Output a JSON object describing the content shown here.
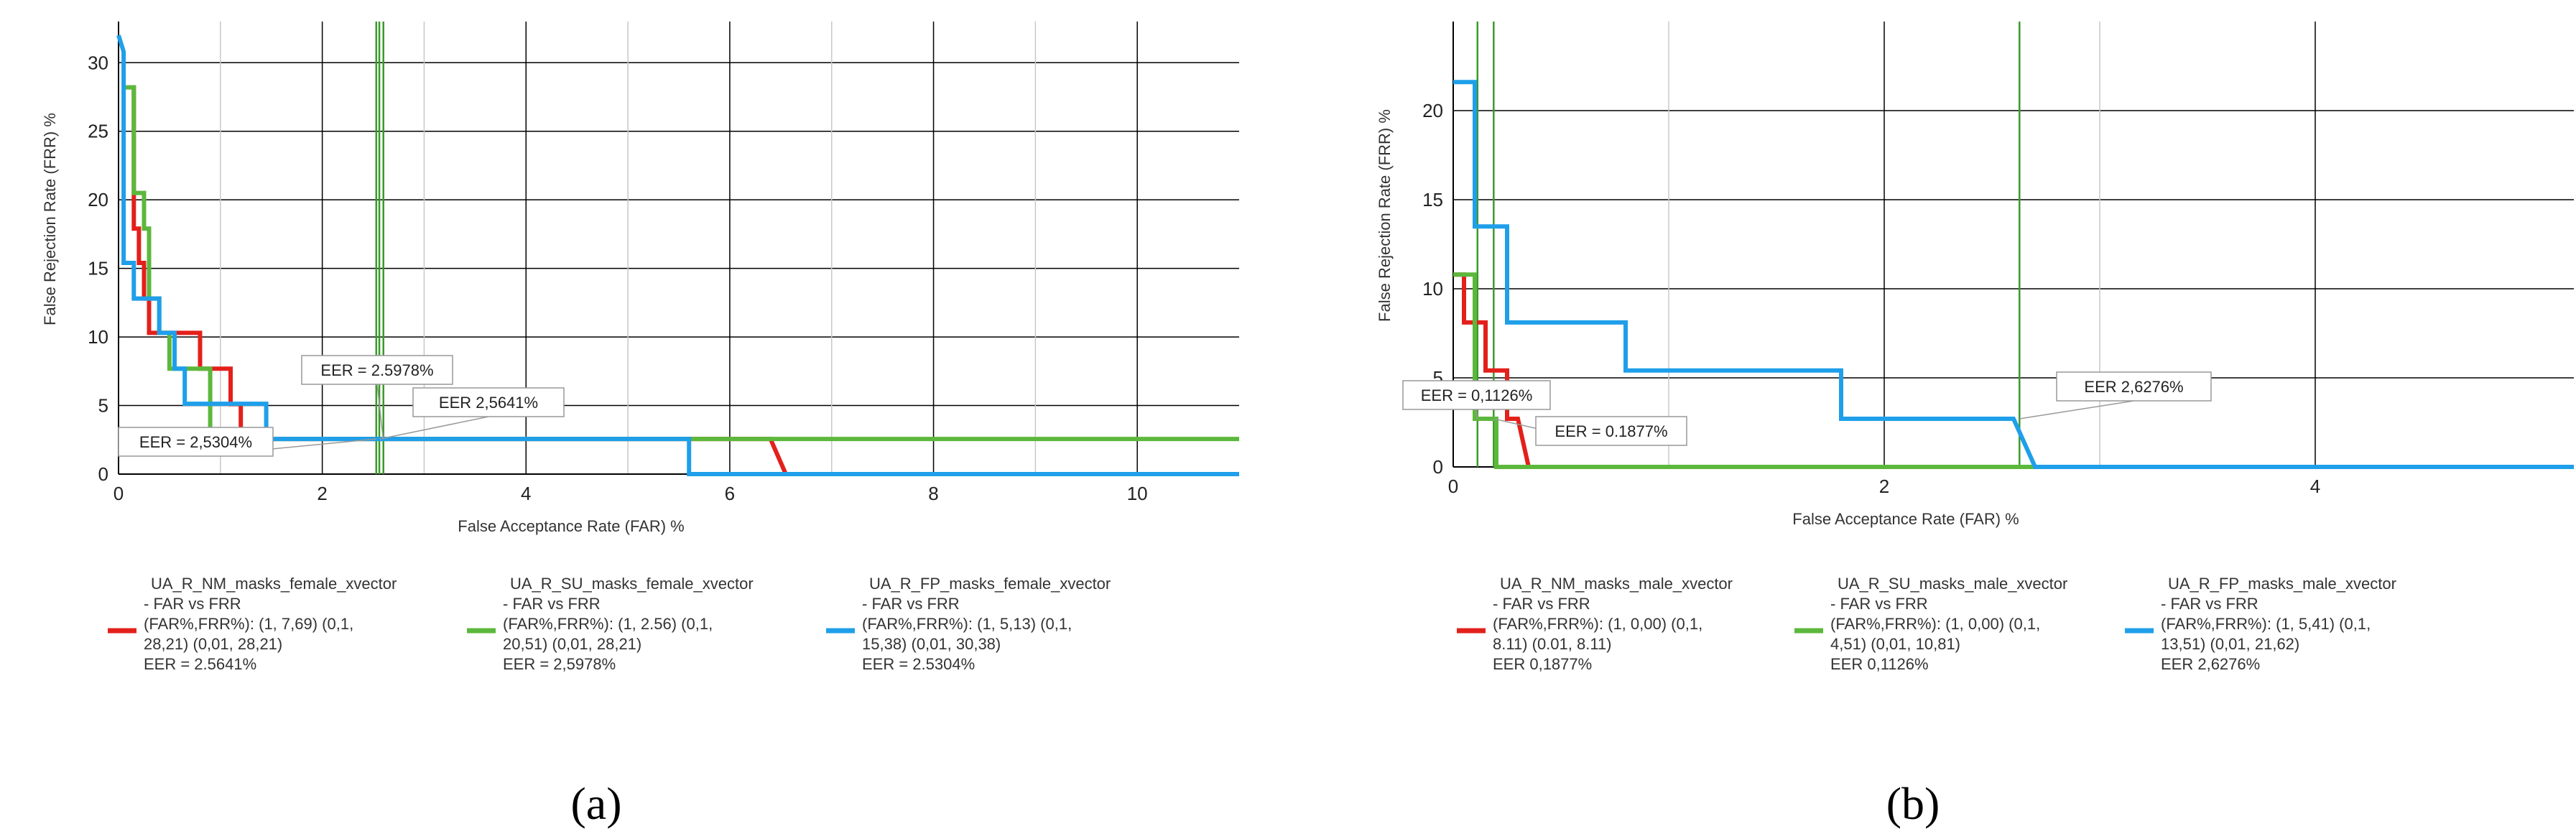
{
  "chart_data": [
    {
      "type": "line",
      "panel": "a",
      "caption": "(a)",
      "xlabel": "False Acceptance Rate (FAR) %",
      "ylabel": "False Rejection Rate (FRR) %",
      "xlim": [
        0,
        11
      ],
      "ylim": [
        0,
        33
      ],
      "x_ticks": [
        0,
        2,
        4,
        6,
        8,
        10
      ],
      "y_ticks": [
        0,
        5,
        10,
        15,
        20,
        25,
        30
      ],
      "grid": true,
      "legend_position": "bottom",
      "series": [
        {
          "name": "UA_R_NM_masks_female_xvector",
          "legend_lines": [
            "UA_R_NM_masks_female_xvector",
            "- FAR vs FRR",
            "(FAR%,FRR%): (1, 7,69) (0,1,",
            "28,21) (0,01, 28,21)",
            "EER = 2.5641%"
          ],
          "color": "#e3201b",
          "points": [
            [
              0.1,
              28.2
            ],
            [
              0.1,
              28.2
            ],
            [
              0.15,
              28.2
            ],
            [
              0.15,
              17.9
            ],
            [
              0.2,
              17.9
            ],
            [
              0.2,
              15.4
            ],
            [
              0.25,
              15.4
            ],
            [
              0.25,
              12.8
            ],
            [
              0.3,
              12.8
            ],
            [
              0.3,
              10.3
            ],
            [
              0.8,
              10.3
            ],
            [
              0.8,
              7.69
            ],
            [
              1.1,
              7.69
            ],
            [
              1.1,
              5.1
            ],
            [
              1.2,
              5.1
            ],
            [
              1.2,
              2.56
            ],
            [
              6.4,
              2.56
            ],
            [
              6.55,
              0
            ],
            [
              11,
              0
            ]
          ]
        },
        {
          "name": "UA_R_SU_masks_female_xvector",
          "legend_lines": [
            "UA_R_SU_masks_female_xvector",
            "- FAR vs FRR",
            "(FAR%,FRR%): (1, 2.56) (0,1,",
            "20,51) (0,01, 28,21)",
            "EER = 2,5978%"
          ],
          "color": "#5cb83c",
          "points": [
            [
              0.05,
              28.2
            ],
            [
              0.15,
              28.2
            ],
            [
              0.15,
              20.5
            ],
            [
              0.25,
              20.5
            ],
            [
              0.25,
              17.9
            ],
            [
              0.3,
              17.9
            ],
            [
              0.3,
              12.8
            ],
            [
              0.4,
              12.8
            ],
            [
              0.4,
              10.3
            ],
            [
              0.5,
              10.3
            ],
            [
              0.5,
              7.69
            ],
            [
              0.9,
              7.69
            ],
            [
              0.9,
              2.56
            ],
            [
              11,
              2.56
            ]
          ]
        },
        {
          "name": "UA_R_FP_masks_female_xvector",
          "legend_lines": [
            "UA_R_FP_masks_female_xvector",
            "- FAR vs FRR",
            "(FAR%,FRR%): (1, 5,13) (0,1,",
            "15,38) (0,01, 30,38)",
            "EER = 2.5304%"
          ],
          "color": "#1f9fea",
          "points": [
            [
              0,
              32
            ],
            [
              0.05,
              30.8
            ],
            [
              0.05,
              15.4
            ],
            [
              0.15,
              15.4
            ],
            [
              0.15,
              12.8
            ],
            [
              0.4,
              12.8
            ],
            [
              0.4,
              10.3
            ],
            [
              0.55,
              10.3
            ],
            [
              0.55,
              7.69
            ],
            [
              0.65,
              7.69
            ],
            [
              0.65,
              5.13
            ],
            [
              1.45,
              5.13
            ],
            [
              1.45,
              2.56
            ],
            [
              5.6,
              2.56
            ],
            [
              5.6,
              0
            ],
            [
              11,
              0
            ]
          ]
        }
      ],
      "vertical_lines": [
        2.53,
        2.56,
        2.6
      ],
      "annotations": [
        {
          "text": "EER = 2.5978%",
          "x": 2.5978,
          "y": 2.56
        },
        {
          "text": "EER   2,5641%",
          "x": 2.5641,
          "y": 2.56
        },
        {
          "text": "EER = 2,5304%",
          "x": 2.5304,
          "y": 2.56
        }
      ]
    },
    {
      "type": "line",
      "panel": "b",
      "caption": "(b)",
      "xlabel": "False Acceptance Rate (FAR) %",
      "ylabel": "False Rejection Rate (FRR) %",
      "xlim": [
        0,
        5.2
      ],
      "ylim": [
        0,
        25
      ],
      "x_ticks": [
        0,
        2,
        4
      ],
      "y_ticks": [
        0,
        5,
        10,
        15,
        20
      ],
      "grid": true,
      "legend_position": "bottom",
      "series": [
        {
          "name": "UA_R_NM_masks_male_xvector",
          "legend_lines": [
            "UA_R_NM_masks_male_xvector",
            "- FAR vs FRR",
            "(FAR%,FRR%): (1, 0,00) (0,1,",
            "8.11) (0.01, 8.11)",
            "EER   0,1877%"
          ],
          "color": "#e3201b",
          "points": [
            [
              0,
              10.8
            ],
            [
              0.05,
              10.8
            ],
            [
              0.05,
              8.11
            ],
            [
              0.15,
              8.11
            ],
            [
              0.15,
              5.41
            ],
            [
              0.25,
              5.41
            ],
            [
              0.25,
              2.7
            ],
            [
              0.3,
              2.7
            ],
            [
              0.35,
              0
            ],
            [
              5.2,
              0
            ]
          ]
        },
        {
          "name": "UA_R_SU_masks_male_xvector",
          "legend_lines": [
            "UA_R_SU_masks_male_xvector",
            "- FAR vs FRR",
            "(FAR%,FRR%): (1, 0,00) (0,1,",
            "4,51) (0,01, 10,81)",
            "EER   0,1126%"
          ],
          "color": "#5cb83c",
          "points": [
            [
              0,
              10.8
            ],
            [
              0.1,
              10.8
            ],
            [
              0.1,
              2.7
            ],
            [
              0.2,
              2.7
            ],
            [
              0.2,
              0
            ],
            [
              5.2,
              0
            ]
          ]
        },
        {
          "name": "UA_R_FP_masks_male_xvector",
          "legend_lines": [
            "UA_R_FP_masks_male_xvector",
            "- FAR vs FRR",
            "(FAR%,FRR%): (1, 5,41) (0,1,",
            "13,51) (0,01, 21,62)",
            "EER   2,6276%"
          ],
          "color": "#1f9fea",
          "points": [
            [
              0,
              21.6
            ],
            [
              0.1,
              21.6
            ],
            [
              0.1,
              13.5
            ],
            [
              0.25,
              13.5
            ],
            [
              0.25,
              8.11
            ],
            [
              0.8,
              8.11
            ],
            [
              0.8,
              5.41
            ],
            [
              1.8,
              5.41
            ],
            [
              1.8,
              2.7
            ],
            [
              2.6,
              2.7
            ],
            [
              2.7,
              0
            ],
            [
              5.2,
              0
            ]
          ]
        }
      ],
      "vertical_lines": [
        0.1126,
        0.1877,
        2.6276
      ],
      "annotations": [
        {
          "text": "EER = 0,1126%",
          "x": 0.1126,
          "y": 2.7
        },
        {
          "text": "EER = 0.1877%",
          "x": 0.1877,
          "y": 2.7
        },
        {
          "text": "EER   2,6276%",
          "x": 2.6276,
          "y": 2.7
        }
      ]
    }
  ]
}
